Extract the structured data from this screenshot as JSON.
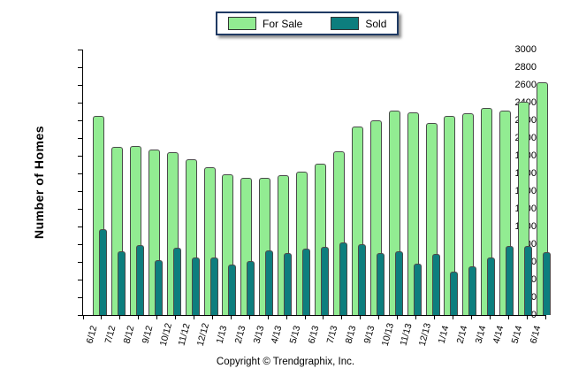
{
  "legend": {
    "items": [
      {
        "label": "For Sale",
        "color": "#92ec92"
      },
      {
        "label": "Sold",
        "color": "#0d7e7e"
      }
    ]
  },
  "footer": {
    "copyright": "Copyright © Trendgraphix, Inc."
  },
  "chart_data": {
    "type": "bar",
    "title": "",
    "xlabel": "",
    "ylabel": "Number of Homes",
    "ylim": [
      0,
      3000
    ],
    "ytick_step": 200,
    "grid": false,
    "legend_position": "top-center",
    "categories": [
      "6/12",
      "7/12",
      "8/12",
      "9/12",
      "10/12",
      "11/12",
      "12/12",
      "1/13",
      "2/13",
      "3/13",
      "4/13",
      "5/13",
      "6/13",
      "7/13",
      "8/13",
      "9/13",
      "10/13",
      "11/13",
      "12/13",
      "1/14",
      "2/14",
      "3/14",
      "4/14",
      "5/14",
      "6/14"
    ],
    "series": [
      {
        "name": "For Sale",
        "color": "#92ec92",
        "values": [
          2250,
          1900,
          1910,
          1870,
          1840,
          1760,
          1670,
          1590,
          1550,
          1550,
          1580,
          1620,
          1710,
          1850,
          2130,
          2200,
          2310,
          2290,
          2170,
          2250,
          2280,
          2340,
          2310,
          2410,
          2630
        ]
      },
      {
        "name": "Sold",
        "color": "#0d7e7e",
        "values": [
          970,
          720,
          790,
          620,
          760,
          650,
          650,
          570,
          610,
          730,
          700,
          750,
          770,
          820,
          800,
          700,
          720,
          580,
          690,
          490,
          550,
          650,
          780,
          780,
          710
        ]
      }
    ]
  }
}
